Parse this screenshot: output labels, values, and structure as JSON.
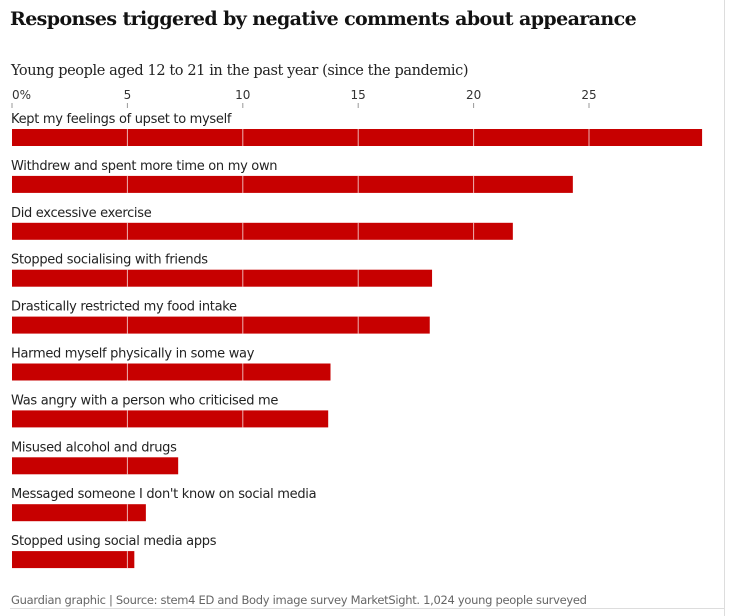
{
  "chart_data": {
    "type": "bar",
    "orientation": "horizontal",
    "title": "Responses triggered by negative comments about appearance",
    "subtitle": "Young people aged 12 to 21 in the past year (since the pandemic)",
    "categories": [
      "Kept my feelings of upset to myself",
      "Withdrew and spent more time on my own",
      "Did excessive exercise",
      "Stopped socialising with friends",
      "Drastically restricted my food intake",
      "Harmed myself physically in some way",
      "Was angry with a person who criticised me",
      "Misused alcohol and drugs",
      "Messaged someone I don't know on social media",
      "Stopped using social media apps"
    ],
    "values": [
      29.9,
      24.3,
      21.7,
      18.2,
      18.1,
      13.8,
      13.7,
      7.2,
      5.8,
      5.3
    ],
    "xlim": [
      0,
      30
    ],
    "x_ticks": [
      0,
      5,
      10,
      15,
      20,
      25
    ],
    "x_tick_labels": [
      "0%",
      "5",
      "10",
      "15",
      "20",
      "25"
    ],
    "bar_color": "#c70000",
    "grid": true,
    "source": "Guardian graphic | Source: stem4 ED and Body image survey MarketSight. 1,024 young people surveyed"
  }
}
